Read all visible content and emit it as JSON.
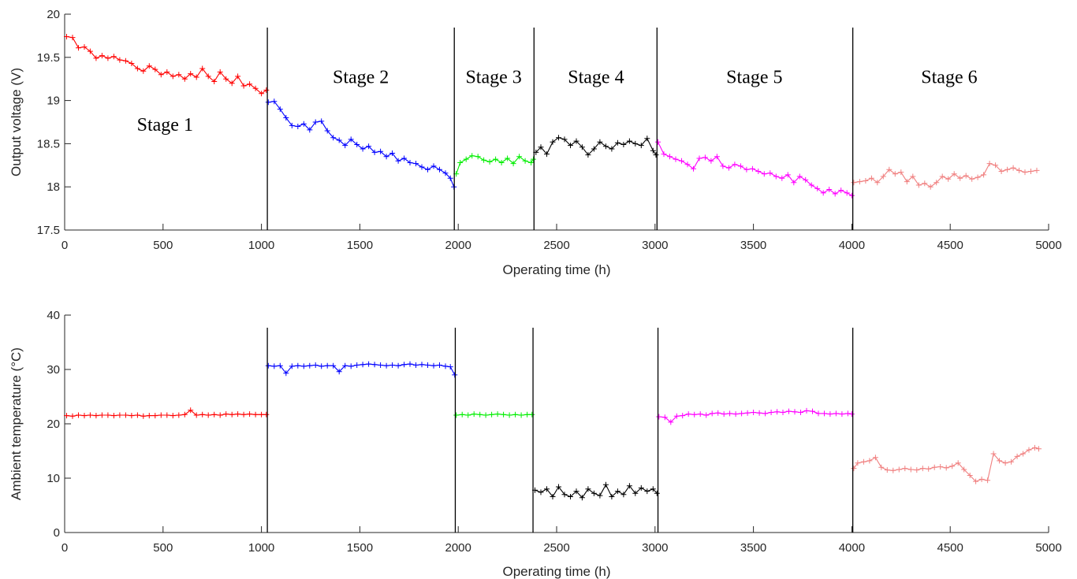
{
  "chart_data": [
    {
      "type": "line",
      "xlabel": "Operating time (h)",
      "ylabel": "Output voltage (V)",
      "xlim": [
        0,
        5000
      ],
      "ylim": [
        17.5,
        20
      ],
      "xticks": [
        0,
        500,
        1000,
        1500,
        2000,
        2500,
        3000,
        3500,
        4000,
        4500,
        5000
      ],
      "yticks": [
        17.5,
        18,
        18.5,
        19,
        19.5,
        20
      ],
      "ytick_labels": [
        "17.5",
        "18",
        "18.5",
        "19",
        "19.5",
        "20"
      ],
      "grid": false,
      "dividers": [
        1030,
        1980,
        2385,
        3010,
        4005
      ],
      "annotations": [
        {
          "text": "Stage 1",
          "x": 510,
          "y": 18.65
        },
        {
          "text": "Stage 2",
          "x": 1505,
          "y": 19.2
        },
        {
          "text": "Stage 3",
          "x": 2180,
          "y": 19.2
        },
        {
          "text": "Stage 4",
          "x": 2700,
          "y": 19.2
        },
        {
          "text": "Stage 5",
          "x": 3505,
          "y": 19.2
        },
        {
          "text": "Stage 6",
          "x": 4495,
          "y": 19.2
        }
      ],
      "series": [
        {
          "color": "#ff0000",
          "x": [
            10,
            40,
            70,
            100,
            130,
            160,
            190,
            220,
            250,
            280,
            310,
            340,
            370,
            400,
            430,
            460,
            490,
            520,
            550,
            580,
            610,
            640,
            670,
            700,
            730,
            760,
            790,
            820,
            850,
            880,
            910,
            940,
            970,
            1000,
            1025
          ],
          "y": [
            19.74,
            19.73,
            19.61,
            19.62,
            19.57,
            19.49,
            19.52,
            19.49,
            19.51,
            19.47,
            19.46,
            19.43,
            19.37,
            19.34,
            19.4,
            19.36,
            19.3,
            19.33,
            19.28,
            19.3,
            19.25,
            19.31,
            19.27,
            19.37,
            19.28,
            19.22,
            19.33,
            19.25,
            19.2,
            19.28,
            19.17,
            19.19,
            19.14,
            19.08,
            19.12
          ]
        },
        {
          "color": "#0000ff",
          "x": [
            1035,
            1065,
            1095,
            1125,
            1155,
            1185,
            1215,
            1245,
            1275,
            1305,
            1335,
            1365,
            1395,
            1425,
            1455,
            1485,
            1515,
            1545,
            1575,
            1605,
            1635,
            1665,
            1695,
            1725,
            1755,
            1785,
            1815,
            1845,
            1875,
            1905,
            1935,
            1960,
            1978
          ],
          "y": [
            18.98,
            18.99,
            18.9,
            18.8,
            18.71,
            18.7,
            18.73,
            18.66,
            18.75,
            18.76,
            18.65,
            18.57,
            18.54,
            18.48,
            18.55,
            18.49,
            18.44,
            18.47,
            18.4,
            18.41,
            18.35,
            18.39,
            18.3,
            18.33,
            18.28,
            18.27,
            18.23,
            18.2,
            18.24,
            18.2,
            18.16,
            18.1,
            18.0
          ]
        },
        {
          "color": "#00ee00",
          "x": [
            1990,
            2010,
            2040,
            2070,
            2100,
            2130,
            2160,
            2190,
            2220,
            2250,
            2280,
            2310,
            2340,
            2370,
            2382
          ],
          "y": [
            18.15,
            18.28,
            18.32,
            18.36,
            18.35,
            18.31,
            18.29,
            18.32,
            18.28,
            18.33,
            18.27,
            18.35,
            18.3,
            18.28,
            18.32
          ]
        },
        {
          "color": "#000000",
          "x": [
            2395,
            2420,
            2450,
            2480,
            2510,
            2540,
            2570,
            2600,
            2630,
            2660,
            2690,
            2720,
            2750,
            2780,
            2810,
            2840,
            2870,
            2900,
            2930,
            2960,
            2990,
            3005
          ],
          "y": [
            18.4,
            18.46,
            18.38,
            18.52,
            18.57,
            18.55,
            18.48,
            18.53,
            18.46,
            18.37,
            18.44,
            18.52,
            18.47,
            18.44,
            18.51,
            18.49,
            18.53,
            18.5,
            18.48,
            18.56,
            18.42,
            18.37
          ]
        },
        {
          "color": "#ff00ff",
          "x": [
            3015,
            3045,
            3075,
            3105,
            3135,
            3165,
            3195,
            3225,
            3255,
            3285,
            3315,
            3345,
            3375,
            3405,
            3435,
            3465,
            3495,
            3525,
            3555,
            3585,
            3615,
            3645,
            3675,
            3705,
            3735,
            3765,
            3795,
            3825,
            3855,
            3885,
            3915,
            3945,
            3975,
            4000
          ],
          "y": [
            18.52,
            18.38,
            18.35,
            18.32,
            18.3,
            18.26,
            18.21,
            18.33,
            18.34,
            18.3,
            18.35,
            18.24,
            18.22,
            18.26,
            18.24,
            18.2,
            18.21,
            18.18,
            18.15,
            18.16,
            18.12,
            18.1,
            18.14,
            18.05,
            18.12,
            18.08,
            18.02,
            17.98,
            17.93,
            17.97,
            17.92,
            17.96,
            17.93,
            17.9
          ]
        },
        {
          "color": "#f08080",
          "x": [
            4010,
            4040,
            4070,
            4100,
            4130,
            4160,
            4190,
            4220,
            4250,
            4280,
            4310,
            4340,
            4370,
            4400,
            4430,
            4460,
            4490,
            4520,
            4550,
            4580,
            4610,
            4640,
            4670,
            4700,
            4730,
            4760,
            4790,
            4820,
            4850,
            4880,
            4910,
            4940
          ],
          "y": [
            18.05,
            18.06,
            18.07,
            18.1,
            18.05,
            18.12,
            18.2,
            18.15,
            18.17,
            18.06,
            18.12,
            18.02,
            18.04,
            18.0,
            18.05,
            18.12,
            18.09,
            18.15,
            18.1,
            18.13,
            18.09,
            18.11,
            18.14,
            18.27,
            18.25,
            18.18,
            18.2,
            18.22,
            18.19,
            18.17,
            18.18,
            18.19
          ]
        }
      ]
    },
    {
      "type": "line",
      "xlabel": "Operating time (h)",
      "ylabel": "Ambient temperature (°C)",
      "xlim": [
        0,
        5000
      ],
      "ylim": [
        0,
        40
      ],
      "xticks": [
        0,
        500,
        1000,
        1500,
        2000,
        2500,
        3000,
        3500,
        4000,
        4500,
        5000
      ],
      "yticks": [
        0,
        10,
        20,
        30,
        40
      ],
      "ytick_labels": [
        "0",
        "10",
        "20",
        "30",
        "40"
      ],
      "grid": false,
      "dividers": [
        1030,
        1985,
        2380,
        3015,
        4005
      ],
      "annotations": [],
      "series": [
        {
          "color": "#ff0000",
          "x": [
            10,
            40,
            70,
            100,
            130,
            160,
            190,
            220,
            250,
            280,
            310,
            340,
            370,
            400,
            430,
            460,
            490,
            520,
            550,
            580,
            610,
            640,
            670,
            700,
            730,
            760,
            790,
            820,
            850,
            880,
            910,
            940,
            970,
            1000,
            1025
          ],
          "y": [
            21.5,
            21.4,
            21.6,
            21.5,
            21.6,
            21.5,
            21.6,
            21.6,
            21.5,
            21.6,
            21.6,
            21.5,
            21.6,
            21.4,
            21.5,
            21.5,
            21.6,
            21.6,
            21.5,
            21.6,
            21.7,
            22.5,
            21.6,
            21.7,
            21.6,
            21.7,
            21.6,
            21.8,
            21.7,
            21.8,
            21.7,
            21.8,
            21.7,
            21.7,
            21.7
          ]
        },
        {
          "color": "#0000ff",
          "x": [
            1035,
            1065,
            1095,
            1125,
            1155,
            1185,
            1215,
            1245,
            1275,
            1305,
            1335,
            1365,
            1395,
            1425,
            1455,
            1485,
            1515,
            1545,
            1575,
            1605,
            1635,
            1665,
            1695,
            1725,
            1755,
            1785,
            1815,
            1845,
            1875,
            1905,
            1935,
            1960,
            1982
          ],
          "y": [
            30.7,
            30.6,
            30.7,
            29.3,
            30.6,
            30.7,
            30.6,
            30.7,
            30.8,
            30.6,
            30.7,
            30.7,
            29.6,
            30.7,
            30.6,
            30.8,
            30.9,
            31.0,
            30.9,
            30.8,
            30.7,
            30.8,
            30.7,
            30.9,
            31.0,
            30.8,
            30.9,
            30.8,
            30.7,
            30.8,
            30.6,
            30.5,
            29.0
          ]
        },
        {
          "color": "#00ee00",
          "x": [
            1990,
            2020,
            2050,
            2080,
            2110,
            2140,
            2170,
            2200,
            2230,
            2260,
            2290,
            2320,
            2350,
            2375
          ],
          "y": [
            21.6,
            21.7,
            21.6,
            21.8,
            21.7,
            21.6,
            21.7,
            21.8,
            21.7,
            21.6,
            21.7,
            21.6,
            21.7,
            21.7
          ]
        },
        {
          "color": "#000000",
          "x": [
            2390,
            2420,
            2450,
            2480,
            2510,
            2540,
            2570,
            2600,
            2630,
            2660,
            2690,
            2720,
            2750,
            2780,
            2810,
            2840,
            2870,
            2900,
            2930,
            2960,
            2990,
            3010
          ],
          "y": [
            7.8,
            7.4,
            8.0,
            6.6,
            8.4,
            7.0,
            6.6,
            7.6,
            6.4,
            8.0,
            7.2,
            6.8,
            8.8,
            6.6,
            7.6,
            7.0,
            8.6,
            7.2,
            8.2,
            7.6,
            8.0,
            7.2
          ]
        },
        {
          "color": "#ff00ff",
          "x": [
            3020,
            3050,
            3080,
            3110,
            3140,
            3170,
            3200,
            3230,
            3260,
            3290,
            3320,
            3350,
            3380,
            3410,
            3440,
            3470,
            3500,
            3530,
            3560,
            3590,
            3620,
            3650,
            3680,
            3710,
            3740,
            3770,
            3800,
            3830,
            3860,
            3890,
            3920,
            3950,
            3980,
            4000
          ],
          "y": [
            21.3,
            21.2,
            20.3,
            21.4,
            21.5,
            21.8,
            21.7,
            21.8,
            21.6,
            21.9,
            22.0,
            21.8,
            21.9,
            21.8,
            21.9,
            22.0,
            22.1,
            22.0,
            21.9,
            22.1,
            22.2,
            22.1,
            22.3,
            22.2,
            22.1,
            22.4,
            22.3,
            21.9,
            21.9,
            21.8,
            21.9,
            21.8,
            21.9,
            21.8
          ]
        },
        {
          "color": "#f08080",
          "x": [
            4010,
            4030,
            4060,
            4090,
            4120,
            4150,
            4180,
            4210,
            4240,
            4270,
            4300,
            4330,
            4360,
            4390,
            4420,
            4450,
            4480,
            4510,
            4540,
            4570,
            4600,
            4630,
            4660,
            4690,
            4720,
            4750,
            4780,
            4810,
            4840,
            4870,
            4900,
            4930,
            4950
          ],
          "y": [
            11.8,
            12.8,
            13.0,
            13.2,
            13.8,
            12.0,
            11.5,
            11.4,
            11.6,
            11.8,
            11.6,
            11.5,
            11.8,
            11.7,
            12.0,
            12.1,
            11.9,
            12.2,
            12.8,
            11.6,
            10.5,
            9.4,
            9.8,
            9.6,
            14.5,
            13.2,
            12.8,
            13.0,
            14.0,
            14.5,
            15.2,
            15.6,
            15.4
          ]
        }
      ]
    }
  ]
}
